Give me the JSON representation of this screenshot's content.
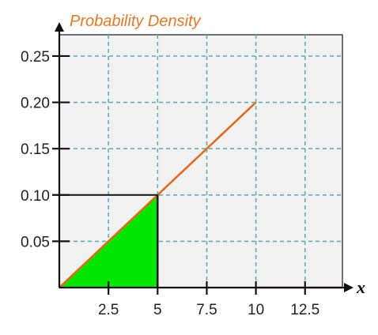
{
  "chart_data": {
    "type": "line",
    "ylabel": "Probability Density",
    "xlabel": "x",
    "xlim": [
      0,
      14.4
    ],
    "ylim": [
      0,
      0.273
    ],
    "x_ticks": [
      2.5,
      5,
      7.5,
      10,
      12.5
    ],
    "x_tick_labels": [
      "2.5",
      "5",
      "7.5",
      "10",
      "12.5"
    ],
    "y_ticks": [
      0.05,
      0.1,
      0.15,
      0.2,
      0.25
    ],
    "y_tick_labels": [
      "0.05",
      "0.10",
      "0.15",
      "0.20",
      "0.25"
    ],
    "grid": true,
    "series": [
      {
        "x": [
          0,
          10
        ],
        "y": [
          0,
          0.2
        ]
      },
      {
        "x": [
          10,
          14.4
        ],
        "y": [
          0,
          0
        ]
      }
    ],
    "shaded_region": {
      "x": [
        0,
        5
      ],
      "y_at_x_end": 0.1
    },
    "reference_point": {
      "x": 5,
      "y": 0.1
    },
    "colors": {
      "line": "#e06a1e",
      "fill": "#00e600",
      "grid": "#5fb3ad",
      "axis": "#111111",
      "plot_bg": "#f2f2f2",
      "ylabel": "#e07828"
    }
  }
}
